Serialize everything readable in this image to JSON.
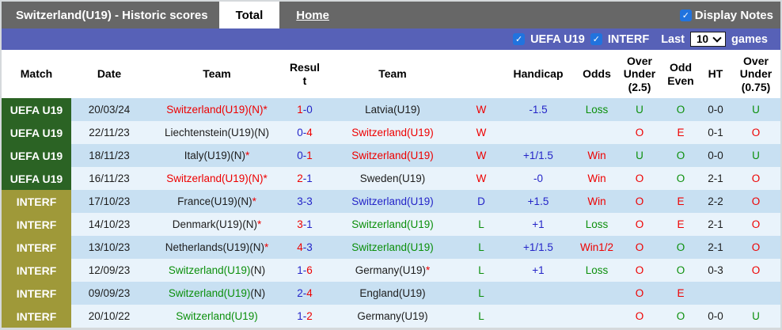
{
  "header_bar": {
    "title": "Switzerland(U19) - Historic scores",
    "tabs": [
      {
        "label": "Total",
        "active": true
      },
      {
        "label": "Home",
        "active": false
      }
    ],
    "display_notes_label": "Display Notes",
    "display_notes_checked": true
  },
  "filter_bar": {
    "checkboxes": [
      {
        "label": "UEFA U19",
        "checked": true
      },
      {
        "label": "INTERF",
        "checked": true
      }
    ],
    "last_label": "Last",
    "games_count": "10",
    "games_label": "games"
  },
  "palette": {
    "red": "#ee0000",
    "blue": "#2424c8",
    "green": "#0b8f0b",
    "black": "#1d1d1d"
  },
  "brand": {
    "topbar_bg": "#676767",
    "filter_bg": "#5761b7",
    "checkbox_blue": "#2173de",
    "uefa_bg": "#2b6324",
    "interf_bg": "#9f9939",
    "row_dark": "#c8e0f2",
    "row_light": "#e9f3fb"
  },
  "table": {
    "columns": [
      "Match",
      "Date",
      "Team",
      "Result",
      "Team",
      "",
      "Handicap",
      "Odds",
      "Over Under (2.5)",
      "Odd Even",
      "HT",
      "Over Under (0.75)"
    ],
    "rows": [
      {
        "shade": "dark",
        "match": "UEFA U19",
        "match_type": "uefa",
        "date": "20/03/24",
        "team1": [
          {
            "t": "Switzerland(U19)(N)*",
            "c": "red"
          }
        ],
        "score": {
          "h": "1",
          "hc": "red",
          "a": "0",
          "ac": "blue"
        },
        "team2": [
          {
            "t": "Latvia(U19)",
            "c": "black"
          }
        ],
        "wdl": {
          "t": "W",
          "c": "red"
        },
        "handicap": "-1.5",
        "odds": {
          "t": "Loss",
          "c": "green"
        },
        "ou25": {
          "t": "U",
          "c": "green"
        },
        "oddeven": {
          "t": "O",
          "c": "green"
        },
        "ht": "0-0",
        "ou075": {
          "t": "U",
          "c": "green"
        }
      },
      {
        "shade": "light",
        "match": "UEFA U19",
        "match_type": "uefa",
        "date": "22/11/23",
        "team1": [
          {
            "t": "Liechtenstein(U19)(N)",
            "c": "black"
          }
        ],
        "score": {
          "h": "0",
          "hc": "blue",
          "a": "4",
          "ac": "red"
        },
        "team2": [
          {
            "t": "Switzerland(U19)",
            "c": "red"
          }
        ],
        "wdl": {
          "t": "W",
          "c": "red"
        },
        "handicap": "",
        "odds": {
          "t": "",
          "c": "black"
        },
        "ou25": {
          "t": "O",
          "c": "red"
        },
        "oddeven": {
          "t": "E",
          "c": "red"
        },
        "ht": "0-1",
        "ou075": {
          "t": "O",
          "c": "red"
        }
      },
      {
        "shade": "dark",
        "match": "UEFA U19",
        "match_type": "uefa",
        "date": "18/11/23",
        "team1": [
          {
            "t": "Italy(U19)(N)",
            "c": "black"
          },
          {
            "t": "*",
            "c": "red"
          }
        ],
        "score": {
          "h": "0",
          "hc": "blue",
          "a": "1",
          "ac": "red"
        },
        "team2": [
          {
            "t": "Switzerland(U19)",
            "c": "red"
          }
        ],
        "wdl": {
          "t": "W",
          "c": "red"
        },
        "handicap": "+1/1.5",
        "odds": {
          "t": "Win",
          "c": "red"
        },
        "ou25": {
          "t": "U",
          "c": "green"
        },
        "oddeven": {
          "t": "O",
          "c": "green"
        },
        "ht": "0-0",
        "ou075": {
          "t": "U",
          "c": "green"
        }
      },
      {
        "shade": "light",
        "match": "UEFA U19",
        "match_type": "uefa",
        "date": "16/11/23",
        "team1": [
          {
            "t": "Switzerland(U19)(N)*",
            "c": "red"
          }
        ],
        "score": {
          "h": "2",
          "hc": "red",
          "a": "1",
          "ac": "blue"
        },
        "team2": [
          {
            "t": "Sweden(U19)",
            "c": "black"
          }
        ],
        "wdl": {
          "t": "W",
          "c": "red"
        },
        "handicap": "-0",
        "odds": {
          "t": "Win",
          "c": "red"
        },
        "ou25": {
          "t": "O",
          "c": "red"
        },
        "oddeven": {
          "t": "O",
          "c": "green"
        },
        "ht": "2-1",
        "ou075": {
          "t": "O",
          "c": "red"
        }
      },
      {
        "shade": "dark",
        "match": "INTERF",
        "match_type": "interf",
        "date": "17/10/23",
        "team1": [
          {
            "t": "France(U19)(N)",
            "c": "black"
          },
          {
            "t": "*",
            "c": "red"
          }
        ],
        "score": {
          "h": "3",
          "hc": "blue",
          "a": "3",
          "ac": "blue"
        },
        "team2": [
          {
            "t": "Switzerland(U19)",
            "c": "blue"
          }
        ],
        "wdl": {
          "t": "D",
          "c": "blue"
        },
        "handicap": "+1.5",
        "odds": {
          "t": "Win",
          "c": "red"
        },
        "ou25": {
          "t": "O",
          "c": "red"
        },
        "oddeven": {
          "t": "E",
          "c": "red"
        },
        "ht": "2-2",
        "ou075": {
          "t": "O",
          "c": "red"
        }
      },
      {
        "shade": "light",
        "match": "INTERF",
        "match_type": "interf",
        "date": "14/10/23",
        "team1": [
          {
            "t": "Denmark(U19)(N)",
            "c": "black"
          },
          {
            "t": "*",
            "c": "red"
          }
        ],
        "score": {
          "h": "3",
          "hc": "red",
          "a": "1",
          "ac": "blue"
        },
        "team2": [
          {
            "t": "Switzerland(U19)",
            "c": "green"
          }
        ],
        "wdl": {
          "t": "L",
          "c": "green"
        },
        "handicap": "+1",
        "odds": {
          "t": "Loss",
          "c": "green"
        },
        "ou25": {
          "t": "O",
          "c": "red"
        },
        "oddeven": {
          "t": "E",
          "c": "red"
        },
        "ht": "2-1",
        "ou075": {
          "t": "O",
          "c": "red"
        }
      },
      {
        "shade": "dark",
        "match": "INTERF",
        "match_type": "interf",
        "date": "13/10/23",
        "team1": [
          {
            "t": "Netherlands(U19)(N)",
            "c": "black"
          },
          {
            "t": "*",
            "c": "red"
          }
        ],
        "score": {
          "h": "4",
          "hc": "red",
          "a": "3",
          "ac": "blue"
        },
        "team2": [
          {
            "t": "Switzerland(U19)",
            "c": "green"
          }
        ],
        "wdl": {
          "t": "L",
          "c": "green"
        },
        "handicap": "+1/1.5",
        "odds": {
          "t": "Win1/2",
          "c": "red"
        },
        "ou25": {
          "t": "O",
          "c": "red"
        },
        "oddeven": {
          "t": "O",
          "c": "green"
        },
        "ht": "2-1",
        "ou075": {
          "t": "O",
          "c": "red"
        }
      },
      {
        "shade": "light",
        "match": "INTERF",
        "match_type": "interf",
        "date": "12/09/23",
        "team1": [
          {
            "t": "Switzerland(U19)",
            "c": "green"
          },
          {
            "t": "(N)",
            "c": "black"
          }
        ],
        "score": {
          "h": "1",
          "hc": "blue",
          "a": "6",
          "ac": "red"
        },
        "team2": [
          {
            "t": "Germany(U19)",
            "c": "black"
          },
          {
            "t": "*",
            "c": "red"
          }
        ],
        "wdl": {
          "t": "L",
          "c": "green"
        },
        "handicap": "+1",
        "odds": {
          "t": "Loss",
          "c": "green"
        },
        "ou25": {
          "t": "O",
          "c": "red"
        },
        "oddeven": {
          "t": "O",
          "c": "green"
        },
        "ht": "0-3",
        "ou075": {
          "t": "O",
          "c": "red"
        }
      },
      {
        "shade": "dark",
        "match": "INTERF",
        "match_type": "interf",
        "date": "09/09/23",
        "team1": [
          {
            "t": "Switzerland(U19)",
            "c": "green"
          },
          {
            "t": "(N)",
            "c": "black"
          }
        ],
        "score": {
          "h": "2",
          "hc": "blue",
          "a": "4",
          "ac": "red"
        },
        "team2": [
          {
            "t": "England(U19)",
            "c": "black"
          }
        ],
        "wdl": {
          "t": "L",
          "c": "green"
        },
        "handicap": "",
        "odds": {
          "t": "",
          "c": "black"
        },
        "ou25": {
          "t": "O",
          "c": "red"
        },
        "oddeven": {
          "t": "E",
          "c": "red"
        },
        "ht": "",
        "ou075": {
          "t": "",
          "c": "black"
        }
      },
      {
        "shade": "light",
        "match": "INTERF",
        "match_type": "interf",
        "date": "20/10/22",
        "team1": [
          {
            "t": "Switzerland(U19)",
            "c": "green"
          }
        ],
        "score": {
          "h": "1",
          "hc": "blue",
          "a": "2",
          "ac": "red"
        },
        "team2": [
          {
            "t": "Germany(U19)",
            "c": "black"
          }
        ],
        "wdl": {
          "t": "L",
          "c": "green"
        },
        "handicap": "",
        "odds": {
          "t": "",
          "c": "black"
        },
        "ou25": {
          "t": "O",
          "c": "red"
        },
        "oddeven": {
          "t": "O",
          "c": "green"
        },
        "ht": "0-0",
        "ou075": {
          "t": "U",
          "c": "green"
        }
      }
    ]
  }
}
